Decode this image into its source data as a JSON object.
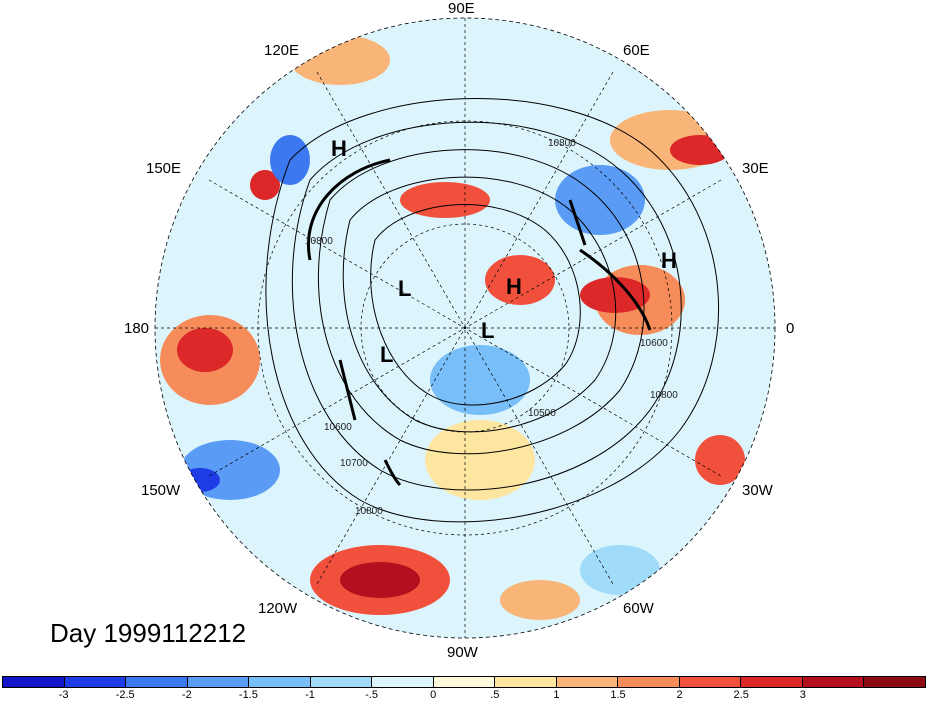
{
  "title": "Day 1999112212",
  "longitude_labels": {
    "n90e": "90E",
    "n60e": "60E",
    "n30e": "30E",
    "e0": "0",
    "s30w": "30W",
    "s60w": "60W",
    "s90w": "90W",
    "s120w": "120W",
    "w150w": "150W",
    "w180": "180",
    "w150e": "150E",
    "n120e": "120E"
  },
  "pressure_centers": [
    {
      "id": "high-1",
      "label": "H"
    },
    {
      "id": "high-2",
      "label": "H"
    },
    {
      "id": "high-3",
      "label": "H"
    },
    {
      "id": "low-1",
      "label": "L"
    },
    {
      "id": "low-2",
      "label": "L"
    },
    {
      "id": "low-3",
      "label": "L"
    }
  ],
  "contour_labels": [
    "10800",
    "10600",
    "10700",
    "10800",
    "10500",
    "10800",
    "10800",
    "10600"
  ],
  "colorbar": {
    "colors": [
      "#1414c8",
      "#1e3ce6",
      "#3c78f0",
      "#5a9bf5",
      "#78bef8",
      "#a0dcfa",
      "#dcf5fc",
      "#fcf9dc",
      "#fce6a0",
      "#f9b478",
      "#f58c5a",
      "#f0503c",
      "#dc2828",
      "#b40f1e",
      "#8c0a14"
    ],
    "ticks": [
      "-3",
      "-2.5",
      "-2",
      "-1.5",
      "-1",
      "-.5",
      "0",
      ".5",
      "1",
      "1.5",
      "2",
      "2.5",
      "3"
    ]
  }
}
